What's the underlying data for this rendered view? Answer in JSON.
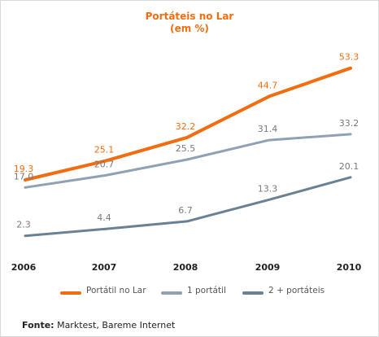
{
  "chart_data": {
    "type": "line",
    "title": "Portáteis  no Lar",
    "subtitle": "(em %)",
    "categories": [
      "2006",
      "2007",
      "2008",
      "2009",
      "2010"
    ],
    "series": [
      {
        "name": "Portátil no Lar",
        "values": [
          19.3,
          25.1,
          32.2,
          44.7,
          53.3
        ],
        "color": "#f26d10"
      },
      {
        "name": "1 portátil",
        "values": [
          17.0,
          20.7,
          25.5,
          31.4,
          33.2
        ],
        "color": "#8fa1b3"
      },
      {
        "name": "2 + portáteis",
        "values": [
          2.3,
          4.4,
          6.7,
          13.3,
          20.1
        ],
        "color": "#6a8095"
      }
    ],
    "labels_text": [
      [
        "19.3",
        "25.1",
        "32.2",
        "44.7",
        "53.3"
      ],
      [
        "17.0",
        "20.7",
        "25.5",
        "31.4",
        "33.2"
      ],
      [
        "2.3",
        "4.4",
        "6.7",
        "13.3",
        "20.1"
      ]
    ],
    "label_colors": [
      "#f26d10",
      "#7a7a7a",
      "#7a7a7a"
    ],
    "grid": false,
    "legend_position": "bottom"
  },
  "source": {
    "label": "Fonte:",
    "text": " Marktest, Bareme Internet"
  }
}
